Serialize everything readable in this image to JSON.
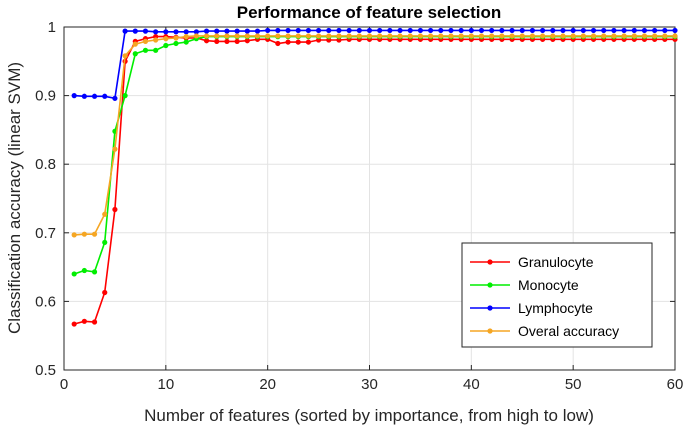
{
  "chart_data": {
    "type": "line",
    "title": "Performance of feature selection",
    "xlabel": "Number of features (sorted by importance, from high to low)",
    "ylabel": "Classification accuracy (linear SVM)",
    "xlim": [
      0,
      60
    ],
    "ylim": [
      0.5,
      1
    ],
    "xticks": [
      0,
      10,
      20,
      30,
      40,
      50,
      60
    ],
    "yticks": [
      0.5,
      0.6,
      0.7,
      0.8,
      0.9,
      1
    ],
    "xtick_labels": [
      "0",
      "10",
      "20",
      "30",
      "40",
      "50",
      "60"
    ],
    "ytick_labels": [
      "0.5",
      "0.6",
      "0.7",
      "0.8",
      "0.9",
      "1"
    ],
    "grid": true,
    "legend_position": "bottom-right",
    "series": [
      {
        "name": "Granulocyte",
        "color": "#ff0000",
        "x": [
          1,
          2,
          3,
          4,
          5,
          6,
          7,
          8,
          9,
          10,
          11,
          12,
          13,
          14,
          15,
          16,
          17,
          18,
          19,
          20,
          21,
          22,
          23,
          24,
          25,
          26,
          27,
          28,
          29,
          30,
          31,
          32,
          33,
          34,
          35,
          36,
          37,
          38,
          39,
          40,
          41,
          42,
          43,
          44,
          45,
          46,
          47,
          48,
          49,
          50,
          51,
          52,
          53,
          54,
          55,
          56,
          57,
          58,
          59,
          60
        ],
        "values": [
          0.567,
          0.571,
          0.57,
          0.613,
          0.734,
          0.95,
          0.979,
          0.983,
          0.986,
          0.986,
          0.985,
          0.984,
          0.984,
          0.98,
          0.979,
          0.979,
          0.979,
          0.98,
          0.982,
          0.982,
          0.976,
          0.978,
          0.978,
          0.978,
          0.981,
          0.981,
          0.981,
          0.982,
          0.982,
          0.982,
          0.982,
          0.982,
          0.982,
          0.982,
          0.982,
          0.982,
          0.982,
          0.982,
          0.982,
          0.982,
          0.982,
          0.982,
          0.982,
          0.982,
          0.982,
          0.982,
          0.982,
          0.982,
          0.982,
          0.982,
          0.982,
          0.982,
          0.982,
          0.982,
          0.982,
          0.982,
          0.982,
          0.982,
          0.982,
          0.982
        ]
      },
      {
        "name": "Monocyte",
        "color": "#00ee00",
        "x": [
          1,
          2,
          3,
          4,
          5,
          6,
          7,
          8,
          9,
          10,
          11,
          12,
          13,
          14,
          15,
          16,
          17,
          18,
          19,
          20,
          21,
          22,
          23,
          24,
          25,
          26,
          27,
          28,
          29,
          30,
          31,
          32,
          33,
          34,
          35,
          36,
          37,
          38,
          39,
          40,
          41,
          42,
          43,
          44,
          45,
          46,
          47,
          48,
          49,
          50,
          51,
          52,
          53,
          54,
          55,
          56,
          57,
          58,
          59,
          60
        ],
        "values": [
          0.64,
          0.645,
          0.643,
          0.686,
          0.848,
          0.9,
          0.961,
          0.966,
          0.966,
          0.973,
          0.976,
          0.978,
          0.983,
          0.986,
          0.986,
          0.986,
          0.986,
          0.986,
          0.986,
          0.986,
          0.986,
          0.986,
          0.986,
          0.986,
          0.986,
          0.986,
          0.986,
          0.986,
          0.986,
          0.986,
          0.986,
          0.986,
          0.986,
          0.986,
          0.986,
          0.986,
          0.986,
          0.986,
          0.986,
          0.986,
          0.986,
          0.986,
          0.986,
          0.986,
          0.986,
          0.986,
          0.986,
          0.986,
          0.986,
          0.986,
          0.986,
          0.986,
          0.986,
          0.986,
          0.986,
          0.986,
          0.986,
          0.986,
          0.986,
          0.986
        ]
      },
      {
        "name": "Lymphocyte",
        "color": "#0000ff",
        "x": [
          1,
          2,
          3,
          4,
          5,
          6,
          7,
          8,
          9,
          10,
          11,
          12,
          13,
          14,
          15,
          16,
          17,
          18,
          19,
          20,
          21,
          22,
          23,
          24,
          25,
          26,
          27,
          28,
          29,
          30,
          31,
          32,
          33,
          34,
          35,
          36,
          37,
          38,
          39,
          40,
          41,
          42,
          43,
          44,
          45,
          46,
          47,
          48,
          49,
          50,
          51,
          52,
          53,
          54,
          55,
          56,
          57,
          58,
          59,
          60
        ],
        "values": [
          0.9,
          0.899,
          0.899,
          0.899,
          0.896,
          0.994,
          0.994,
          0.994,
          0.993,
          0.993,
          0.993,
          0.993,
          0.993,
          0.994,
          0.994,
          0.994,
          0.994,
          0.994,
          0.994,
          0.995,
          0.995,
          0.995,
          0.995,
          0.995,
          0.995,
          0.995,
          0.995,
          0.995,
          0.995,
          0.995,
          0.995,
          0.995,
          0.995,
          0.995,
          0.995,
          0.995,
          0.995,
          0.995,
          0.995,
          0.995,
          0.995,
          0.995,
          0.995,
          0.995,
          0.995,
          0.995,
          0.995,
          0.995,
          0.995,
          0.995,
          0.995,
          0.995,
          0.995,
          0.995,
          0.995,
          0.995,
          0.995,
          0.995,
          0.995,
          0.995
        ]
      },
      {
        "name": "Overal accuracy",
        "color": "#f5a623",
        "x": [
          1,
          2,
          3,
          4,
          5,
          6,
          7,
          8,
          9,
          10,
          11,
          12,
          13,
          14,
          15,
          16,
          17,
          18,
          19,
          20,
          21,
          22,
          23,
          24,
          25,
          26,
          27,
          28,
          29,
          30,
          31,
          32,
          33,
          34,
          35,
          36,
          37,
          38,
          39,
          40,
          41,
          42,
          43,
          44,
          45,
          46,
          47,
          48,
          49,
          50,
          51,
          52,
          53,
          54,
          55,
          56,
          57,
          58,
          59,
          60
        ],
        "values": [
          0.697,
          0.698,
          0.698,
          0.727,
          0.822,
          0.958,
          0.975,
          0.979,
          0.981,
          0.983,
          0.984,
          0.986,
          0.987,
          0.987,
          0.987,
          0.987,
          0.987,
          0.987,
          0.987,
          0.987,
          0.987,
          0.987,
          0.987,
          0.987,
          0.987,
          0.987,
          0.987,
          0.987,
          0.987,
          0.987,
          0.987,
          0.987,
          0.987,
          0.987,
          0.987,
          0.987,
          0.987,
          0.987,
          0.987,
          0.987,
          0.987,
          0.987,
          0.987,
          0.987,
          0.987,
          0.987,
          0.987,
          0.987,
          0.987,
          0.987,
          0.987,
          0.987,
          0.987,
          0.987,
          0.987,
          0.987,
          0.987,
          0.987,
          0.987,
          0.987
        ]
      }
    ]
  }
}
